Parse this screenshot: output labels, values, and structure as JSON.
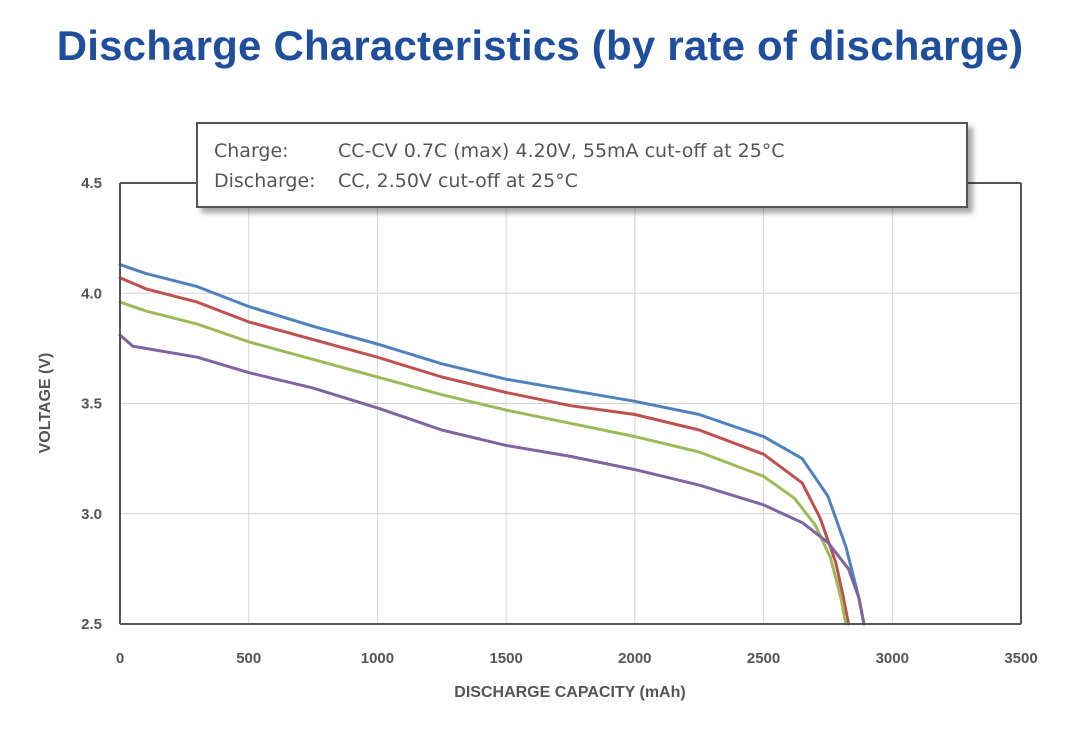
{
  "title": "Discharge Characteristics (by rate of discharge)",
  "note": {
    "rows": [
      {
        "key": "Charge:",
        "value": "CC-CV 0.7C (max) 4.20V, 55mA cut-off at 25°C"
      },
      {
        "key": "Discharge:",
        "value": "CC, 2.50V cut-off at 25°C"
      }
    ]
  },
  "chart_data": {
    "type": "line",
    "title": "Discharge Characteristics (by rate of discharge)",
    "xlabel": "DISCHARGE CAPACITY (mAh)",
    "ylabel": "VOLTAGE (V)",
    "xlim": [
      0,
      3500
    ],
    "ylim": [
      2.5,
      4.5
    ],
    "x_ticks": [
      0,
      500,
      1000,
      1500,
      2000,
      2500,
      3000,
      3500
    ],
    "x_tick_labels": [
      "0",
      "500",
      "1000",
      "1500",
      "2000",
      "2500",
      "3000",
      "3500"
    ],
    "y_ticks": [
      2.5,
      3.0,
      3.5,
      4.0,
      4.5
    ],
    "y_tick_labels": [
      "2.5",
      "3.0",
      "3.5",
      "4.0",
      "4.5"
    ],
    "grid": true,
    "series": [
      {
        "color": "#4f81bd",
        "points": [
          [
            0,
            4.13
          ],
          [
            100,
            4.09
          ],
          [
            300,
            4.03
          ],
          [
            500,
            3.94
          ],
          [
            750,
            3.85
          ],
          [
            1000,
            3.77
          ],
          [
            1250,
            3.68
          ],
          [
            1500,
            3.61
          ],
          [
            1750,
            3.56
          ],
          [
            2000,
            3.51
          ],
          [
            2250,
            3.45
          ],
          [
            2500,
            3.35
          ],
          [
            2650,
            3.25
          ],
          [
            2750,
            3.08
          ],
          [
            2820,
            2.85
          ],
          [
            2870,
            2.62
          ],
          [
            2890,
            2.5
          ]
        ]
      },
      {
        "color": "#c0504d",
        "points": [
          [
            0,
            4.07
          ],
          [
            100,
            4.02
          ],
          [
            300,
            3.96
          ],
          [
            500,
            3.87
          ],
          [
            750,
            3.79
          ],
          [
            1000,
            3.71
          ],
          [
            1250,
            3.62
          ],
          [
            1500,
            3.55
          ],
          [
            1750,
            3.49
          ],
          [
            2000,
            3.45
          ],
          [
            2250,
            3.38
          ],
          [
            2500,
            3.27
          ],
          [
            2650,
            3.14
          ],
          [
            2720,
            2.98
          ],
          [
            2780,
            2.78
          ],
          [
            2810,
            2.62
          ],
          [
            2830,
            2.5
          ]
        ]
      },
      {
        "color": "#9bbb59",
        "points": [
          [
            0,
            3.96
          ],
          [
            100,
            3.92
          ],
          [
            300,
            3.86
          ],
          [
            500,
            3.78
          ],
          [
            750,
            3.7
          ],
          [
            1000,
            3.62
          ],
          [
            1250,
            3.54
          ],
          [
            1500,
            3.47
          ],
          [
            1750,
            3.41
          ],
          [
            2000,
            3.35
          ],
          [
            2250,
            3.28
          ],
          [
            2500,
            3.17
          ],
          [
            2620,
            3.07
          ],
          [
            2700,
            2.95
          ],
          [
            2760,
            2.8
          ],
          [
            2800,
            2.62
          ],
          [
            2820,
            2.5
          ]
        ]
      },
      {
        "color": "#8064a2",
        "points": [
          [
            0,
            3.81
          ],
          [
            50,
            3.76
          ],
          [
            100,
            3.75
          ],
          [
            300,
            3.71
          ],
          [
            500,
            3.64
          ],
          [
            750,
            3.57
          ],
          [
            1000,
            3.48
          ],
          [
            1250,
            3.38
          ],
          [
            1500,
            3.31
          ],
          [
            1750,
            3.26
          ],
          [
            2000,
            3.2
          ],
          [
            2250,
            3.13
          ],
          [
            2500,
            3.04
          ],
          [
            2650,
            2.96
          ],
          [
            2750,
            2.87
          ],
          [
            2830,
            2.75
          ],
          [
            2870,
            2.62
          ],
          [
            2890,
            2.5
          ]
        ]
      }
    ]
  }
}
